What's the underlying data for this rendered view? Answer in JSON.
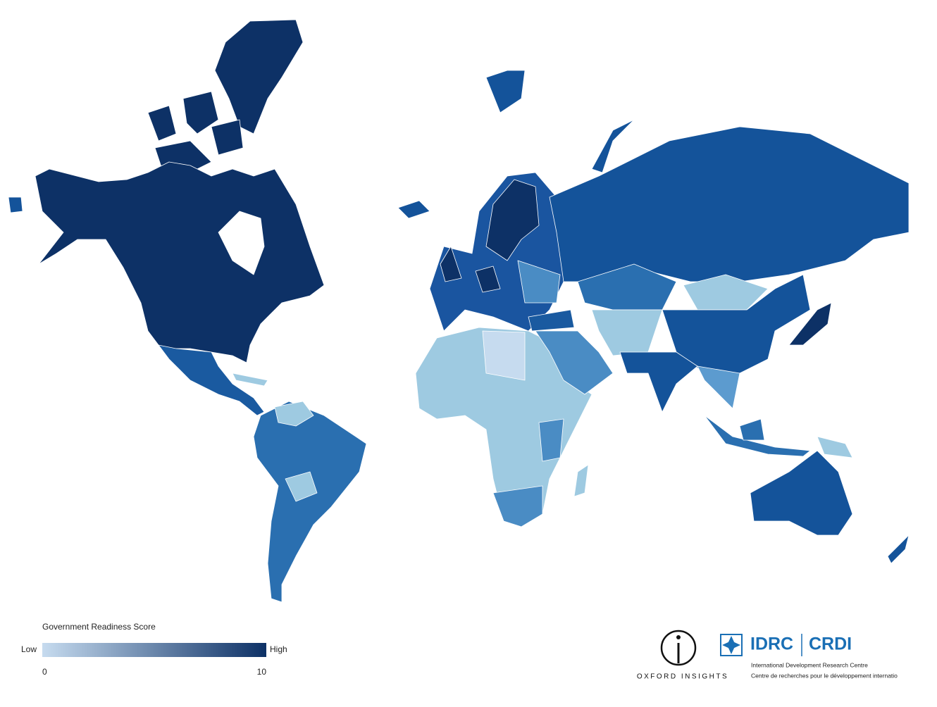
{
  "legend": {
    "title": "Government Readiness Score",
    "low_label": "Low",
    "high_label": "High",
    "range": [
      0,
      10
    ],
    "ticks": [
      0,
      10
    ],
    "colors": [
      "#c6dbef",
      "#0d3166"
    ]
  },
  "logos": {
    "oxford": "OXFORD INSIGHTS",
    "idrc": "IDRC",
    "crdi": "CRDI",
    "idrc_en": "International Development Research Centre",
    "idrc_fr": "Centre de recherches pour le développement internatio"
  }
}
